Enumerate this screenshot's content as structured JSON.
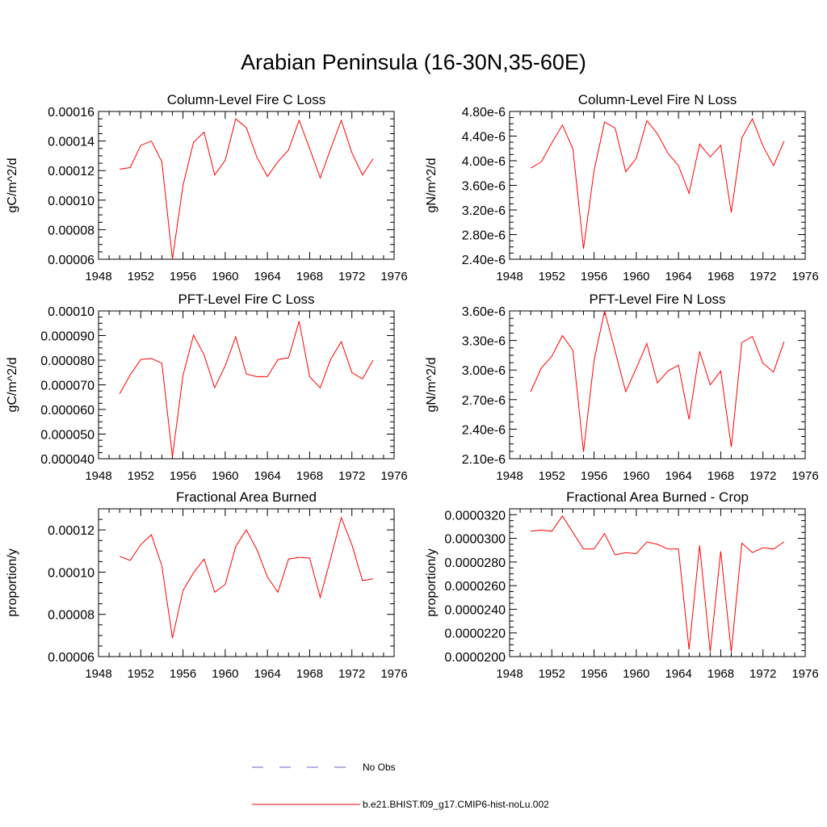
{
  "title": "Arabian Peninsula (16-30N,35-60E)",
  "legend": [
    {
      "label": "No Obs",
      "color": "#6666cc",
      "style": "dashed"
    },
    {
      "label": "b.e21.BHIST.f09_g17.CMIP6-hist-noLu.002",
      "color": "#ff0000",
      "style": "solid"
    }
  ],
  "chart_data": [
    {
      "type": "line",
      "title": "Column-Level Fire C Loss",
      "ylabel": "gC/m^2/d",
      "xlim": [
        1948,
        1976
      ],
      "xticks": [
        1948,
        1952,
        1956,
        1960,
        1964,
        1968,
        1972,
        1976
      ],
      "ylim": [
        6e-05,
        0.00016
      ],
      "yticks": [
        6e-05,
        8e-05,
        0.0001,
        0.00012,
        0.00014,
        0.00016
      ],
      "ytick_labels": [
        "0.00006",
        "0.00008",
        "0.00010",
        "0.00012",
        "0.00014",
        "0.00016"
      ],
      "x": [
        1950,
        1951,
        1952,
        1953,
        1954,
        1955,
        1956,
        1957,
        1958,
        1959,
        1960,
        1961,
        1962,
        1963,
        1964,
        1965,
        1966,
        1967,
        1968,
        1969,
        1970,
        1971,
        1972,
        1973,
        1974
      ],
      "series": [
        {
          "name": "b.e21.BHIST.f09_g17.CMIP6-hist-noLu.002",
          "color": "#ff0000",
          "values": [
            0.000121,
            0.000122,
            0.000137,
            0.00014,
            0.000126,
            6e-05,
            0.00011,
            0.000139,
            0.000146,
            0.000117,
            0.000127,
            0.000155,
            0.000149,
            0.000129,
            0.000116,
            0.000126,
            0.000134,
            0.000154,
            0.000135,
            0.000115,
            0.000135,
            0.000154,
            0.000132,
            0.000117,
            0.000128
          ]
        }
      ]
    },
    {
      "type": "line",
      "title": "Column-Level Fire N Loss",
      "ylabel": "gN/m^2/d",
      "xlim": [
        1948,
        1976
      ],
      "xticks": [
        1948,
        1952,
        1956,
        1960,
        1964,
        1968,
        1972,
        1976
      ],
      "ylim": [
        2.4e-06,
        4.8e-06
      ],
      "yticks": [
        2.4e-06,
        2.8e-06,
        3.2e-06,
        3.6e-06,
        4e-06,
        4.4e-06,
        4.8e-06
      ],
      "ytick_labels": [
        "2.40e-6",
        "2.80e-6",
        "3.20e-6",
        "3.60e-6",
        "4.00e-6",
        "4.40e-6",
        "4.80e-6"
      ],
      "x": [
        1950,
        1951,
        1952,
        1953,
        1954,
        1955,
        1956,
        1957,
        1958,
        1959,
        1960,
        1961,
        1962,
        1963,
        1964,
        1965,
        1966,
        1967,
        1968,
        1969,
        1970,
        1971,
        1972,
        1973,
        1974
      ],
      "series": [
        {
          "name": "b.e21.BHIST.f09_g17.CMIP6-hist-noLu.002",
          "color": "#ff0000",
          "values": [
            3.88e-06,
            3.98e-06,
            4.29e-06,
            4.58e-06,
            4.19e-06,
            2.57e-06,
            3.84e-06,
            4.63e-06,
            4.53e-06,
            3.82e-06,
            4.04e-06,
            4.65e-06,
            4.44e-06,
            4.12e-06,
            3.92e-06,
            3.47e-06,
            4.27e-06,
            4.06e-06,
            4.25e-06,
            3.16e-06,
            4.37e-06,
            4.68e-06,
            4.24e-06,
            3.92e-06,
            4.32e-06
          ]
        }
      ]
    },
    {
      "type": "line",
      "title": "PFT-Level Fire C Loss",
      "ylabel": "gC/m^2/d",
      "xlim": [
        1948,
        1976
      ],
      "xticks": [
        1948,
        1952,
        1956,
        1960,
        1964,
        1968,
        1972,
        1976
      ],
      "ylim": [
        4e-05,
        0.0001
      ],
      "yticks": [
        4e-05,
        5e-05,
        6e-05,
        7e-05,
        8e-05,
        9e-05,
        0.0001
      ],
      "ytick_labels": [
        "0.000040",
        "0.000050",
        "0.000060",
        "0.000070",
        "0.000080",
        "0.000090",
        "0.00010"
      ],
      "x": [
        1950,
        1951,
        1952,
        1953,
        1954,
        1955,
        1956,
        1957,
        1958,
        1959,
        1960,
        1961,
        1962,
        1963,
        1964,
        1965,
        1966,
        1967,
        1968,
        1969,
        1970,
        1971,
        1972,
        1973,
        1974
      ],
      "series": [
        {
          "name": "b.e21.BHIST.f09_g17.CMIP6-hist-noLu.002",
          "color": "#ff0000",
          "values": [
            6.63e-05,
            7.4e-05,
            8.03e-05,
            8.07e-05,
            7.88e-05,
            4.08e-05,
            7.38e-05,
            9.02e-05,
            8.22e-05,
            6.88e-05,
            7.78e-05,
            8.95e-05,
            7.44e-05,
            7.33e-05,
            7.33e-05,
            8.03e-05,
            8.1e-05,
            9.58e-05,
            7.33e-05,
            6.88e-05,
            8.05e-05,
            8.75e-05,
            7.5e-05,
            7.24e-05,
            8e-05
          ]
        }
      ]
    },
    {
      "type": "line",
      "title": "PFT-Level Fire N Loss",
      "ylabel": "gN/m^2/d",
      "xlim": [
        1948,
        1976
      ],
      "xticks": [
        1948,
        1952,
        1956,
        1960,
        1964,
        1968,
        1972,
        1976
      ],
      "ylim": [
        2.1e-06,
        3.6e-06
      ],
      "yticks": [
        2.1e-06,
        2.4e-06,
        2.7e-06,
        3e-06,
        3.3e-06,
        3.6e-06
      ],
      "ytick_labels": [
        "2.10e-6",
        "2.40e-6",
        "2.70e-6",
        "3.00e-6",
        "3.30e-6",
        "3.60e-6"
      ],
      "x": [
        1950,
        1951,
        1952,
        1953,
        1954,
        1955,
        1956,
        1957,
        1958,
        1959,
        1960,
        1961,
        1962,
        1963,
        1964,
        1965,
        1966,
        1967,
        1968,
        1969,
        1970,
        1971,
        1972,
        1973,
        1974
      ],
      "series": [
        {
          "name": "b.e21.BHIST.f09_g17.CMIP6-hist-noLu.002",
          "color": "#ff0000",
          "values": [
            2.78e-06,
            3.02e-06,
            3.14e-06,
            3.35e-06,
            3.2e-06,
            2.17e-06,
            3.1e-06,
            3.6e-06,
            3.19e-06,
            2.78e-06,
            3.02e-06,
            3.27e-06,
            2.87e-06,
            2.99e-06,
            3.05e-06,
            2.5e-06,
            3.19e-06,
            2.85e-06,
            2.99e-06,
            2.22e-06,
            3.28e-06,
            3.34e-06,
            3.07e-06,
            2.98e-06,
            3.29e-06
          ]
        }
      ]
    },
    {
      "type": "line",
      "title": "Fractional Area Burned",
      "ylabel": "proportion/y",
      "xlim": [
        1948,
        1976
      ],
      "xticks": [
        1948,
        1952,
        1956,
        1960,
        1964,
        1968,
        1972,
        1976
      ],
      "ylim": [
        6e-05,
        0.00013
      ],
      "yticks": [
        6e-05,
        8e-05,
        0.0001,
        0.00012
      ],
      "ytick_labels": [
        "0.00006",
        "0.00008",
        "0.00010",
        "0.00012"
      ],
      "x": [
        1950,
        1951,
        1952,
        1953,
        1954,
        1955,
        1956,
        1957,
        1958,
        1959,
        1960,
        1961,
        1962,
        1963,
        1964,
        1965,
        1966,
        1967,
        1968,
        1969,
        1970,
        1971,
        1972,
        1973,
        1974
      ],
      "series": [
        {
          "name": "b.e21.BHIST.f09_g17.CMIP6-hist-noLu.002",
          "color": "#ff0000",
          "values": [
            0.0001075,
            0.0001055,
            0.000113,
            0.0001177,
            0.000103,
            6.88e-05,
            9.13e-05,
            9.97e-05,
            0.0001062,
            9.05e-05,
            9.42e-05,
            0.0001122,
            0.00012,
            0.0001107,
            9.77e-05,
            9.05e-05,
            0.0001062,
            0.000107,
            0.0001067,
            8.8e-05,
            0.0001067,
            0.0001258,
            0.000113,
            9.6e-05,
            9.68e-05
          ]
        }
      ]
    },
    {
      "type": "line",
      "title": "Fractional Area Burned - Crop",
      "ylabel": "proportion/y",
      "xlim": [
        1948,
        1976
      ],
      "xticks": [
        1948,
        1952,
        1956,
        1960,
        1964,
        1968,
        1972,
        1976
      ],
      "ylim": [
        2e-05,
        3.25e-05
      ],
      "yticks": [
        2e-05,
        2.2e-05,
        2.4e-05,
        2.6e-05,
        2.8e-05,
        3e-05,
        3.2e-05
      ],
      "ytick_labels": [
        "0.0000200",
        "0.0000220",
        "0.0000240",
        "0.0000260",
        "0.0000280",
        "0.0000300",
        "0.0000320"
      ],
      "x": [
        1950,
        1951,
        1952,
        1953,
        1954,
        1955,
        1956,
        1957,
        1958,
        1959,
        1960,
        1961,
        1962,
        1963,
        1964,
        1965,
        1966,
        1967,
        1968,
        1969,
        1970,
        1971,
        1972,
        1973,
        1974
      ],
      "series": [
        {
          "name": "b.e21.BHIST.f09_g17.CMIP6-hist-noLu.002",
          "color": "#ff0000",
          "values": [
            3.06e-05,
            3.07e-05,
            3.06e-05,
            3.19e-05,
            3.05e-05,
            2.91e-05,
            2.91e-05,
            3.04e-05,
            2.86e-05,
            2.88e-05,
            2.87e-05,
            2.97e-05,
            2.95e-05,
            2.91e-05,
            2.91e-05,
            2.06e-05,
            2.94e-05,
            2.04e-05,
            2.89e-05,
            2.04e-05,
            2.96e-05,
            2.88e-05,
            2.92e-05,
            2.91e-05,
            2.97e-05
          ]
        }
      ]
    }
  ]
}
